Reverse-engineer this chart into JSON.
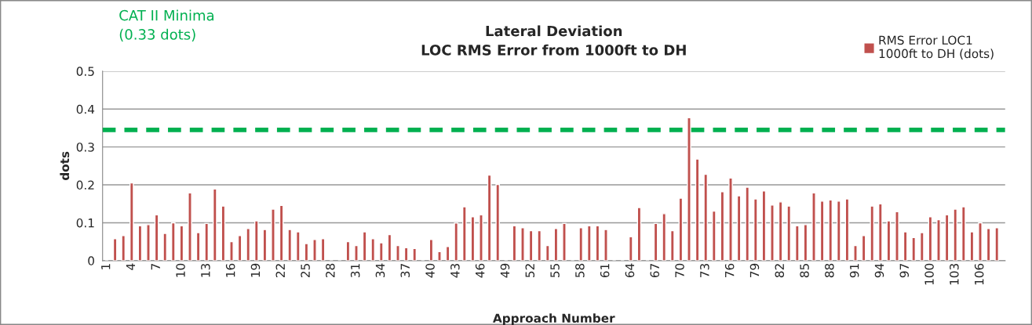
{
  "chart_data": {
    "type": "bar",
    "title": "Lateral Deviation\nLOC RMS Error from 1000ft to DH",
    "xlabel": "Approach Number",
    "ylabel": "dots",
    "categories": [
      "1",
      null,
      null,
      "4",
      null,
      null,
      "7",
      null,
      null,
      "10",
      null,
      null,
      "13",
      null,
      null,
      "16",
      null,
      null,
      "19",
      null,
      null,
      "22",
      null,
      null,
      "25",
      null,
      null,
      "28",
      null,
      null,
      "31",
      null,
      null,
      "34",
      null,
      null,
      "37",
      null,
      null,
      "40",
      null,
      null,
      "43",
      null,
      null,
      "46",
      null,
      null,
      "49",
      null,
      null,
      "52",
      null,
      null,
      "55",
      null,
      null,
      "58",
      null,
      null,
      "61",
      null,
      null,
      "64",
      null,
      null,
      "67",
      null,
      null,
      "70",
      null,
      null,
      "73",
      null,
      null,
      "76",
      null,
      null,
      "79",
      null,
      null,
      "82",
      null,
      null,
      "85",
      null,
      null,
      "88",
      null,
      null,
      "91",
      null,
      null,
      "94",
      null,
      null,
      "97",
      null,
      null,
      "100",
      null,
      null,
      "103",
      null,
      null,
      "106",
      null,
      null
    ],
    "series": [
      {
        "name": "RMS Error LOC1\n1000ft to DH (dots)",
        "color": "#c0504d",
        "values": [
          null,
          0.058,
          0.066,
          0.205,
          0.092,
          0.095,
          0.121,
          0.072,
          0.1,
          0.092,
          0.179,
          0.074,
          0.098,
          0.189,
          0.144,
          0.05,
          0.066,
          0.085,
          0.105,
          0.082,
          0.136,
          0.146,
          0.082,
          0.076,
          0.045,
          0.056,
          0.058,
          null,
          null,
          0.05,
          0.04,
          0.076,
          0.058,
          0.047,
          0.069,
          0.04,
          0.034,
          0.032,
          null,
          0.056,
          0.024,
          0.037,
          0.099,
          0.142,
          0.116,
          0.121,
          0.226,
          0.201,
          null,
          0.092,
          0.087,
          0.079,
          0.079,
          0.04,
          0.085,
          0.098,
          null,
          0.087,
          0.092,
          0.092,
          0.082,
          null,
          null,
          0.063,
          0.14,
          null,
          0.098,
          0.124,
          0.079,
          0.165,
          0.377,
          0.268,
          0.228,
          0.131,
          0.182,
          0.218,
          0.171,
          0.194,
          0.163,
          0.184,
          0.147,
          0.155,
          0.144,
          0.092,
          0.095,
          0.179,
          0.157,
          0.16,
          0.157,
          0.163,
          0.04,
          0.066,
          0.144,
          0.15,
          0.105,
          0.129,
          0.076,
          0.061,
          0.074,
          0.116,
          0.108,
          0.121,
          0.136,
          0.142,
          0.076,
          0.1,
          0.085,
          0.087
        ]
      }
    ],
    "ylim": [
      0,
      0.5
    ],
    "yticks": [
      {
        "value": 0,
        "label": "0"
      },
      0.1,
      0.2,
      0.3,
      0.4,
      0.5
    ],
    "ref_lines": [
      {
        "axis": "y",
        "value": 0.345,
        "label": "CAT II Minima\n(0.33 dots)",
        "color": "#00b050",
        "line_style": "dashed"
      }
    ],
    "grid": "y",
    "legend": "top right"
  }
}
